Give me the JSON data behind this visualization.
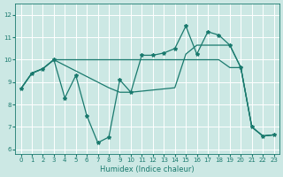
{
  "bg_color": "#cce8e4",
  "line_color": "#1a7a6e",
  "grid_color": "#ffffff",
  "xlabel": "Humidex (Indice chaleur)",
  "ylim": [
    5.8,
    12.5
  ],
  "xlim": [
    -0.5,
    23.5
  ],
  "yticks": [
    6,
    7,
    8,
    9,
    10,
    11,
    12
  ],
  "xticks": [
    0,
    1,
    2,
    3,
    4,
    5,
    6,
    7,
    8,
    9,
    10,
    11,
    12,
    13,
    14,
    15,
    16,
    17,
    18,
    19,
    20,
    21,
    22,
    23
  ],
  "series_zigzag_x": [
    0,
    1,
    2,
    3,
    4,
    5,
    6,
    7,
    8,
    9,
    10,
    11,
    12,
    13,
    14,
    15,
    16,
    17,
    18,
    19,
    20,
    21,
    22,
    23
  ],
  "series_zigzag_y": [
    8.7,
    9.4,
    9.6,
    10.0,
    8.3,
    9.3,
    7.5,
    6.3,
    6.55,
    9.1,
    8.55,
    10.2,
    10.2,
    10.3,
    10.5,
    11.5,
    10.25,
    11.25,
    11.1,
    10.65,
    9.65,
    7.0,
    6.6,
    6.65
  ],
  "series_flat_x": [
    0,
    1,
    2,
    3,
    4,
    5,
    6,
    7,
    8,
    9,
    10,
    11,
    12,
    13,
    14,
    15,
    16,
    17,
    18,
    19,
    20,
    21,
    22,
    23
  ],
  "series_flat_y": [
    8.7,
    9.4,
    9.6,
    10.0,
    10.0,
    10.0,
    10.0,
    10.0,
    10.0,
    10.0,
    10.0,
    10.0,
    10.0,
    10.0,
    10.0,
    10.0,
    10.0,
    10.0,
    10.0,
    9.65,
    9.65,
    7.0,
    6.6,
    6.65
  ],
  "series_diag_x": [
    0,
    1,
    2,
    3,
    4,
    5,
    6,
    7,
    8,
    9,
    10,
    11,
    12,
    13,
    14,
    15,
    16,
    17,
    18,
    19,
    20,
    21,
    22,
    23
  ],
  "series_diag_y": [
    8.7,
    9.4,
    9.6,
    10.0,
    9.75,
    9.5,
    9.25,
    9.0,
    8.75,
    8.55,
    8.55,
    8.6,
    8.65,
    8.7,
    8.75,
    10.25,
    10.65,
    10.65,
    10.65,
    10.65,
    9.65,
    7.0,
    6.6,
    6.65
  ]
}
